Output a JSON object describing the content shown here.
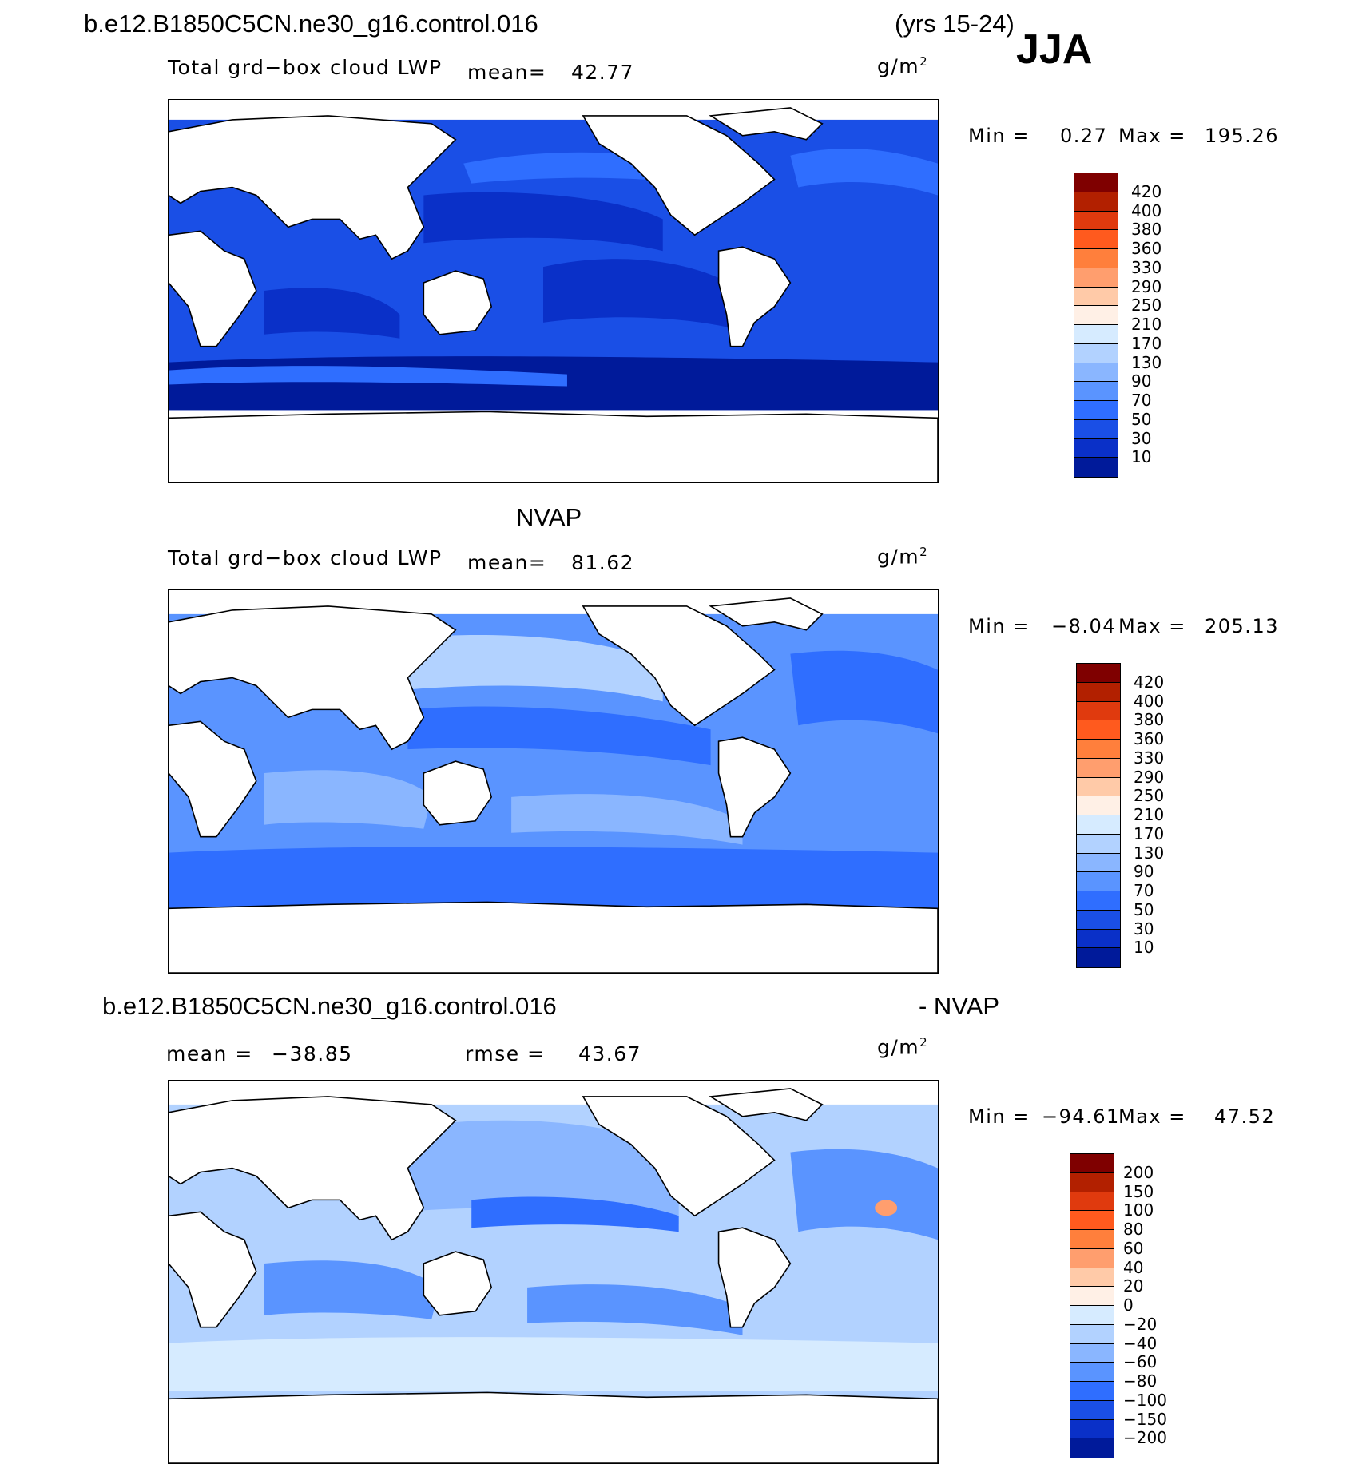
{
  "header": {
    "case_name": "b.e12.B1850C5CN.ne30_g16.control.016",
    "years": "(yrs 15-24)",
    "season": "JJA"
  },
  "panels": [
    {
      "id": "model",
      "subtitle": "",
      "variable": "Total grd−box cloud LWP",
      "mean_label": "mean=",
      "mean_value": "42.77",
      "units_base": "g/m",
      "units_exp": "2",
      "min_label": "Min =",
      "min_value": "0.27",
      "max_label": "Max =",
      "max_value": "195.26",
      "levels": [
        "420",
        "400",
        "380",
        "360",
        "330",
        "290",
        "250",
        "210",
        "170",
        "130",
        "90",
        "70",
        "50",
        "30",
        "10"
      ],
      "colors": [
        "#7f0000",
        "#b22000",
        "#e03a0e",
        "#ff5a1e",
        "#ff7f3c",
        "#ff9e6e",
        "#ffcaa8",
        "#fff0e6",
        "#d6ebff",
        "#b2d2ff",
        "#8ab6ff",
        "#5a94ff",
        "#2f6eff",
        "#1a4fe6",
        "#0a30c8",
        "#001a9a",
        "#000c6e"
      ]
    },
    {
      "id": "obs",
      "subtitle": "NVAP",
      "variable": "Total grd−box cloud LWP",
      "mean_label": "mean=",
      "mean_value": "81.62",
      "units_base": "g/m",
      "units_exp": "2",
      "min_label": "Min =",
      "min_value": "−8.04",
      "max_label": "Max =",
      "max_value": "205.13",
      "levels": [
        "420",
        "400",
        "380",
        "360",
        "330",
        "290",
        "250",
        "210",
        "170",
        "130",
        "90",
        "70",
        "50",
        "30",
        "10"
      ],
      "colors": [
        "#7f0000",
        "#b22000",
        "#e03a0e",
        "#ff5a1e",
        "#ff7f3c",
        "#ff9e6e",
        "#ffcaa8",
        "#fff0e6",
        "#d6ebff",
        "#b2d2ff",
        "#8ab6ff",
        "#5a94ff",
        "#2f6eff",
        "#1a4fe6",
        "#0a30c8",
        "#001a9a",
        "#000c6e"
      ]
    },
    {
      "id": "diff",
      "subtitle_left": "b.e12.B1850C5CN.ne30_g16.control.016",
      "subtitle_right": "- NVAP",
      "mean_label": "mean =",
      "mean_value": "−38.85",
      "rmse_label": "rmse =",
      "rmse_value": "43.67",
      "units_base": "g/m",
      "units_exp": "2",
      "min_label": "Min =",
      "min_value": "−94.61",
      "max_label": "Max =",
      "max_value": "47.52",
      "levels": [
        "200",
        "150",
        "100",
        "80",
        "60",
        "40",
        "20",
        "0",
        "−20",
        "−40",
        "−60",
        "−80",
        "−100",
        "−150",
        "−200"
      ],
      "colors": [
        "#7f0000",
        "#b22000",
        "#e03a0e",
        "#ff5a1e",
        "#ff7f3c",
        "#ff9e6e",
        "#ffcaa8",
        "#fff0e6",
        "#d6ebff",
        "#b2d2ff",
        "#8ab6ff",
        "#5a94ff",
        "#2f6eff",
        "#1a4fe6",
        "#0a30c8",
        "#001a9a",
        "#000c6e"
      ]
    }
  ]
}
